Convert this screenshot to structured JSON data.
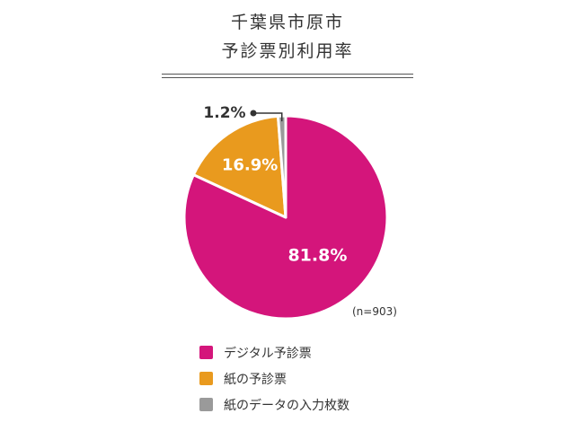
{
  "title_line1": "千葉県市原市",
  "title_line2": "予診票別利用率",
  "sample_label": "(n=903)",
  "chart_data": {
    "type": "pie",
    "title": "千葉県市原市 予診票別利用率",
    "categories": [
      "デジタル予診票",
      "紙の予診票",
      "紙のデータの入力枚数"
    ],
    "values": [
      81.8,
      16.9,
      1.2
    ],
    "value_labels": [
      "81.8%",
      "16.9%",
      "1.2%"
    ],
    "colors": [
      "#d4157b",
      "#e99a1e",
      "#9a9a9a"
    ],
    "legend_position": "bottom"
  },
  "legend": [
    {
      "label": "デジタル予診票",
      "color": "#d4157b"
    },
    {
      "label": "紙の予診票",
      "color": "#e99a1e"
    },
    {
      "label": "紙のデータの入力枚数",
      "color": "#9a9a9a"
    }
  ]
}
